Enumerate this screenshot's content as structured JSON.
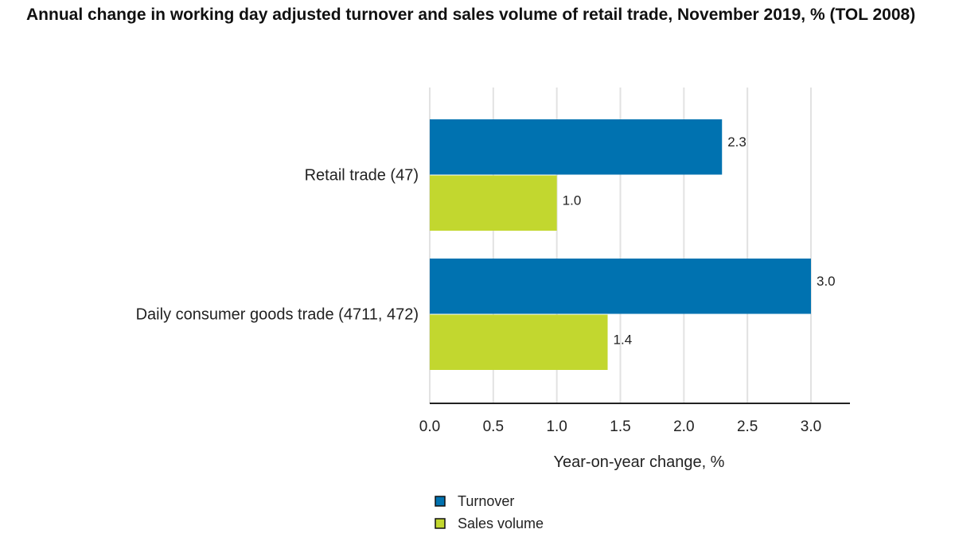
{
  "chart_data": {
    "type": "bar",
    "orientation": "horizontal",
    "title": "Annual change in working day adjusted turnover and sales volume of retail trade, November 2019, % (TOL 2008)",
    "categories": [
      "Retail trade (47)",
      "Daily consumer goods trade (4711, 472)"
    ],
    "series": [
      {
        "name": "Turnover",
        "color": "#0072B0",
        "values": [
          2.3,
          3.0
        ],
        "labels": [
          "2.3",
          "3.0"
        ]
      },
      {
        "name": "Sales volume",
        "color": "#C2D72F",
        "values": [
          1.0,
          1.4
        ],
        "labels": [
          "1.0",
          "1.4"
        ]
      }
    ],
    "xlabel": "Year-on-year change, %",
    "xlim": [
      0,
      3.3
    ],
    "xticks": [
      "0.0",
      "0.5",
      "1.0",
      "1.5",
      "2.0",
      "2.5",
      "3.0"
    ],
    "grid": true,
    "legend": "bottom-left"
  }
}
